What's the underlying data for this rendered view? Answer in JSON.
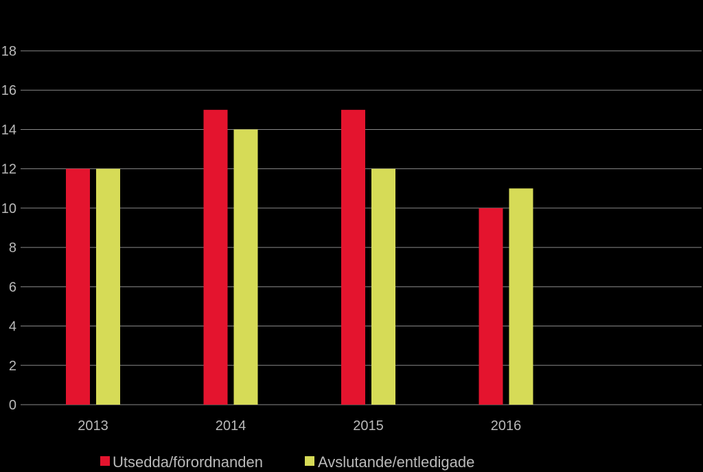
{
  "chart_data": {
    "type": "bar",
    "categories": [
      "2013",
      "2014",
      "2015",
      "2016"
    ],
    "series": [
      {
        "name": "Utsedda/förordnanden",
        "color": "#e4142e",
        "values": [
          12,
          15,
          15,
          10
        ]
      },
      {
        "name": "Avslutande/entledigade",
        "color": "#d6db57",
        "values": [
          12,
          14,
          12,
          11
        ]
      }
    ],
    "title": "",
    "xlabel": "",
    "ylabel": "",
    "ylim": [
      0,
      18
    ],
    "yticks": [
      0,
      2,
      4,
      6,
      8,
      10,
      12,
      14,
      16,
      18
    ],
    "grid": true,
    "legend_position": "bottom",
    "colors": {
      "background": "#000000",
      "gridline": "#8a8a8a",
      "text": "#b9b9b9"
    }
  }
}
